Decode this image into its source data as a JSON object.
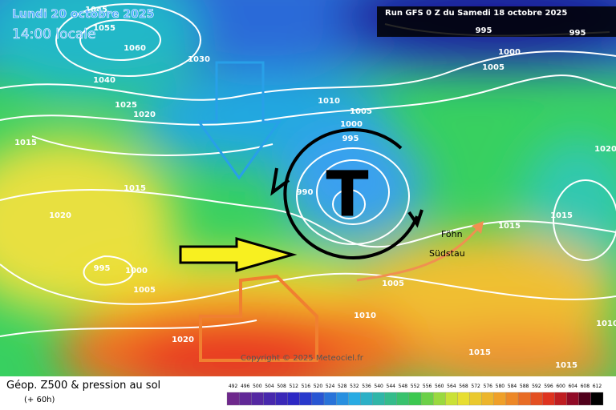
{
  "header": {
    "date": "Lundi 20 octobre 2025",
    "time": "14:00 locale",
    "run": "Run GFS 0 Z du Samedi 18 octobre 2025"
  },
  "map": {
    "isobar_labels": [
      1045,
      1055,
      1060,
      1030,
      1040,
      1025,
      1020,
      1015,
      1015,
      1020,
      995,
      1000,
      1005,
      1010,
      1005,
      1000,
      995,
      990,
      1020,
      1015,
      1015,
      1005,
      1010,
      1020,
      995,
      995,
      1000,
      1005,
      1015,
      1015,
      1010
    ],
    "low_symbol": "T",
    "annotations": [
      "Föhn",
      "Südstau"
    ],
    "copyright": "Copyright © 2025 Meteociel.fr"
  },
  "footer": {
    "title": "Géop. Z500 & pression au sol",
    "lead": "(+ 60h)"
  },
  "scale": {
    "ticks": [
      492,
      496,
      500,
      504,
      508,
      512,
      516,
      520,
      524,
      528,
      532,
      536,
      540,
      544,
      548,
      552,
      556,
      560,
      564,
      568,
      572,
      576,
      580,
      584,
      588,
      592,
      596,
      600,
      604,
      608,
      612
    ]
  }
}
